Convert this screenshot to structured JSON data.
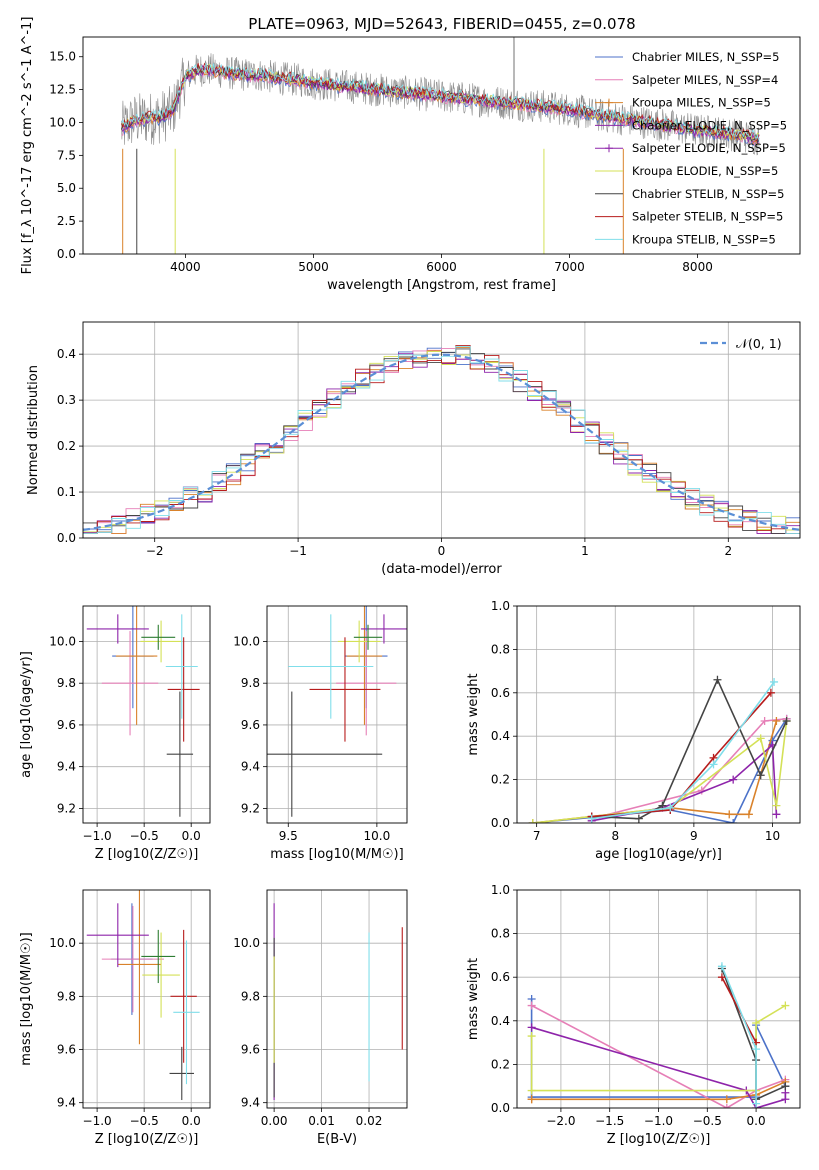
{
  "figure": {
    "title": "PLATE=0963, MJD=52643, FIBERID=0455, z=0.078"
  },
  "colors": {
    "chabrier_miles": "#4c72c9",
    "salpeter_miles": "#e67fb7",
    "kroupa_miles": "#d9822b",
    "chabrier_elodie": "#8e24aa",
    "salpeter_elodie": "#8e24aa",
    "kroupa_elodie": "#d4e157",
    "chabrier_stelib": "#444444",
    "salpeter_stelib": "#b71c1c",
    "kroupa_stelib": "#80deea",
    "data": "#8a8a8a",
    "gauss": "#5b8fd6"
  },
  "chart_data": [
    {
      "id": "spectrum",
      "type": "line",
      "title": "PLATE=0963, MJD=52643, FIBERID=0455, z=0.078",
      "xlabel": "wavelength [Angstrom, rest frame]",
      "ylabel": "Flux [f_λ 10^-17 erg cm^-2 s^-1 A^-1]",
      "xlim": [
        3200,
        8800
      ],
      "ylim": [
        0,
        16.5
      ],
      "xticks": [
        4000,
        5000,
        6000,
        7000,
        8000
      ],
      "yticks": [
        0.0,
        2.5,
        5.0,
        7.5,
        10.0,
        12.5,
        15.0
      ],
      "legend_position": "upper right",
      "legend": [
        {
          "label": "Chabrier MILES, N_SSP=5",
          "color": "#4c72c9",
          "marker": "line"
        },
        {
          "label": "Salpeter MILES, N_SSP=4",
          "color": "#e67fb7",
          "marker": "line"
        },
        {
          "label": "Kroupa MILES, N_SSP=5",
          "color": "#d9822b",
          "marker": "plus"
        },
        {
          "label": "Chabrier ELODIE, N_SSP=5",
          "color": "#8e24aa",
          "marker": "line"
        },
        {
          "label": "Salpeter ELODIE, N_SSP=5",
          "color": "#8e24aa",
          "marker": "plus"
        },
        {
          "label": "Kroupa ELODIE, N_SSP=5",
          "color": "#d4e157",
          "marker": "line"
        },
        {
          "label": "Chabrier STELIB, N_SSP=5",
          "color": "#444444",
          "marker": "line"
        },
        {
          "label": "Salpeter STELIB, N_SSP=5",
          "color": "#b71c1c",
          "marker": "line"
        },
        {
          "label": "Kroupa STELIB, N_SSP=5",
          "color": "#80deea",
          "marker": "line"
        }
      ],
      "continuum": {
        "x": [
          3500,
          3600,
          3700,
          3800,
          3900,
          4000,
          4100,
          4200,
          4300,
          4400,
          4500,
          4600,
          4700,
          4800,
          4900,
          5000,
          5200,
          5400,
          5600,
          5800,
          6000,
          6200,
          6400,
          6600,
          6800,
          7000,
          7200,
          7400,
          7600,
          7800,
          8000,
          8200,
          8400,
          8500
        ],
        "y": [
          9.5,
          10.2,
          10.3,
          10.4,
          10.8,
          13.5,
          14.0,
          14.0,
          13.8,
          13.7,
          13.6,
          13.6,
          13.4,
          13.3,
          13.2,
          13.0,
          12.8,
          12.6,
          12.4,
          12.2,
          12.0,
          11.8,
          11.6,
          11.4,
          11.2,
          11.0,
          10.6,
          10.3,
          10.0,
          9.7,
          9.4,
          9.2,
          8.9,
          8.7
        ]
      }
    },
    {
      "id": "residuals",
      "type": "line",
      "xlabel": "(data-model)/error",
      "ylabel": "Normed distribution",
      "xlim": [
        -2.5,
        2.5
      ],
      "ylim": [
        0,
        0.47
      ],
      "xticks": [
        -2,
        -1,
        0,
        1,
        2
      ],
      "yticks": [
        0.0,
        0.1,
        0.2,
        0.3,
        0.4
      ],
      "grid": true,
      "legend_position": "upper right",
      "legend": [
        {
          "label": "𝒩(0, 1)",
          "color": "#5b8fd6",
          "style": "dashed"
        }
      ],
      "series": [
        {
          "name": "𝒩(0, 1)",
          "mean": 0,
          "sigma": 1
        }
      ]
    },
    {
      "id": "age_vs_Z",
      "type": "errorbar",
      "xlabel": "Z [log10(Z/Z☉)]",
      "ylabel": "age [log10(age/yr)]",
      "xlim": [
        -1.15,
        0.2
      ],
      "ylim": [
        9.13,
        10.17
      ],
      "xticks": [
        -1.0,
        -0.5,
        0.0
      ],
      "yticks": [
        9.2,
        9.4,
        9.6,
        9.8,
        10.0
      ],
      "grid": true,
      "points": [
        {
          "x": -0.62,
          "xe": 0.22,
          "y": 9.93,
          "ye": 0.25,
          "color": "#4c72c9"
        },
        {
          "x": -0.65,
          "xe": 0.3,
          "y": 9.8,
          "ye": 0.25,
          "color": "#e67fb7"
        },
        {
          "x": -0.58,
          "xe": 0.22,
          "y": 9.93,
          "ye": 0.33,
          "color": "#d9822b"
        },
        {
          "x": -0.78,
          "xe": 0.33,
          "y": 10.06,
          "ye": 0.07,
          "color": "#8e24aa"
        },
        {
          "x": -0.32,
          "xe": 0.22,
          "y": 10.0,
          "ye": 0.1,
          "color": "#d4e157"
        },
        {
          "x": -0.35,
          "xe": 0.18,
          "y": 10.02,
          "ye": 0.06,
          "color": "#2e7d32"
        },
        {
          "x": -0.12,
          "xe": 0.14,
          "y": 9.46,
          "ye": 0.3,
          "color": "#444444"
        },
        {
          "x": -0.08,
          "xe": 0.17,
          "y": 9.77,
          "ye": 0.25,
          "color": "#b71c1c"
        },
        {
          "x": -0.1,
          "xe": 0.17,
          "y": 9.88,
          "ye": 0.25,
          "color": "#80deea"
        }
      ]
    },
    {
      "id": "age_vs_mass",
      "type": "errorbar",
      "xlabel": "mass [log10(M/M☉)]",
      "ylabel": "",
      "xlim": [
        9.38,
        10.17
      ],
      "ylim": [
        9.13,
        10.17
      ],
      "xticks": [
        9.5,
        10.0
      ],
      "yticks": [
        9.2,
        9.4,
        9.6,
        9.8,
        10.0
      ],
      "grid": true,
      "points": [
        {
          "x": 9.94,
          "xe": 0.12,
          "y": 9.93,
          "ye": 0.25,
          "color": "#4c72c9"
        },
        {
          "x": 9.94,
          "xe": 0.17,
          "y": 9.8,
          "ye": 0.25,
          "color": "#e67fb7"
        },
        {
          "x": 9.93,
          "xe": 0.1,
          "y": 9.93,
          "ye": 0.33,
          "color": "#d9822b"
        },
        {
          "x": 10.04,
          "xe": 0.13,
          "y": 10.06,
          "ye": 0.07,
          "color": "#8e24aa"
        },
        {
          "x": 9.9,
          "xe": 0.12,
          "y": 10.0,
          "ye": 0.1,
          "color": "#d4e157"
        },
        {
          "x": 9.95,
          "xe": 0.08,
          "y": 10.02,
          "ye": 0.06,
          "color": "#2e7d32"
        },
        {
          "x": 9.52,
          "xe": 0.51,
          "y": 9.46,
          "ye": 0.3,
          "color": "#444444"
        },
        {
          "x": 9.82,
          "xe": 0.2,
          "y": 9.77,
          "ye": 0.25,
          "color": "#b71c1c"
        },
        {
          "x": 9.74,
          "xe": 0.24,
          "y": 9.88,
          "ye": 0.25,
          "color": "#80deea"
        }
      ]
    },
    {
      "id": "mass_weight_vs_age",
      "type": "line",
      "xlabel": "age [log10(age/yr)]",
      "ylabel": "mass weight",
      "xlim": [
        6.75,
        10.35
      ],
      "ylim": [
        0,
        1.0
      ],
      "xticks": [
        7,
        8,
        9,
        10
      ],
      "yticks": [
        0.0,
        0.2,
        0.4,
        0.6,
        0.8,
        1.0
      ],
      "grid": true,
      "series": [
        {
          "name": "Chabrier MILES",
          "color": "#4c72c9",
          "x": [
            6.95,
            8.7,
            9.5,
            10.0,
            10.18
          ],
          "y": [
            0.0,
            0.06,
            0.0,
            0.38,
            0.48
          ]
        },
        {
          "name": "Salpeter MILES",
          "color": "#e67fb7",
          "x": [
            7.7,
            9.1,
            9.9,
            10.18
          ],
          "y": [
            0.02,
            0.15,
            0.47,
            0.48
          ]
        },
        {
          "name": "Kroupa MILES",
          "color": "#d9822b",
          "x": [
            6.95,
            8.7,
            9.45,
            9.7,
            10.05
          ],
          "y": [
            0.0,
            0.07,
            0.04,
            0.04,
            0.47
          ]
        },
        {
          "name": "Chabrier ELODIE",
          "color": "#8e24aa",
          "x": [
            7.7,
            8.6,
            9.5,
            10.0,
            10.05
          ],
          "y": [
            0.01,
            0.07,
            0.2,
            0.36,
            0.04
          ]
        },
        {
          "name": "Kroupa ELODIE",
          "color": "#d4e157",
          "x": [
            6.95,
            8.7,
            9.85,
            10.05,
            10.18
          ],
          "y": [
            0.0,
            0.07,
            0.39,
            0.08,
            0.47
          ]
        },
        {
          "name": "Chabrier STELIB",
          "color": "#444444",
          "x": [
            7.7,
            8.3,
            8.6,
            9.3,
            9.85,
            10.18
          ],
          "y": [
            0.03,
            0.02,
            0.08,
            0.66,
            0.22,
            0.47
          ]
        },
        {
          "name": "Salpeter STELIB",
          "color": "#b71c1c",
          "x": [
            7.7,
            8.7,
            9.25,
            9.98
          ],
          "y": [
            0.03,
            0.06,
            0.3,
            0.6
          ]
        },
        {
          "name": "Kroupa STELIB",
          "color": "#80deea",
          "x": [
            7.7,
            8.7,
            9.25,
            10.02
          ],
          "y": [
            0.02,
            0.07,
            0.27,
            0.65
          ]
        }
      ]
    },
    {
      "id": "mass_vs_Z",
      "type": "errorbar",
      "xlabel": "Z [log10(Z/Z☉)]",
      "ylabel": "mass [log10(M/M☉)]",
      "xlim": [
        -1.15,
        0.2
      ],
      "ylim": [
        9.38,
        10.2
      ],
      "xticks": [
        -1.0,
        -0.5,
        0.0
      ],
      "yticks": [
        9.4,
        9.6,
        9.8,
        10.0
      ],
      "grid": true,
      "points": [
        {
          "x": -0.63,
          "xe": 0.22,
          "y": 9.94,
          "ye": 0.21,
          "color": "#4c72c9"
        },
        {
          "x": -0.62,
          "xe": 0.33,
          "y": 9.94,
          "ye": 0.2,
          "color": "#e67fb7"
        },
        {
          "x": -0.55,
          "xe": 0.23,
          "y": 9.92,
          "ye": 0.3,
          "color": "#d9822b"
        },
        {
          "x": -0.78,
          "xe": 0.33,
          "y": 10.03,
          "ye": 0.12,
          "color": "#8e24aa"
        },
        {
          "x": -0.32,
          "xe": 0.2,
          "y": 9.88,
          "ye": 0.16,
          "color": "#d4e157"
        },
        {
          "x": -0.35,
          "xe": 0.18,
          "y": 9.95,
          "ye": 0.1,
          "color": "#2e7d32"
        },
        {
          "x": -0.1,
          "xe": 0.13,
          "y": 9.51,
          "ye": 0.1,
          "color": "#444444"
        },
        {
          "x": -0.08,
          "xe": 0.14,
          "y": 9.8,
          "ye": 0.25,
          "color": "#b71c1c"
        },
        {
          "x": -0.05,
          "xe": 0.14,
          "y": 9.74,
          "ye": 0.27,
          "color": "#80deea"
        }
      ]
    },
    {
      "id": "mass_vs_ebv",
      "type": "errorbar",
      "xlabel": "E(B-V)",
      "ylabel": "",
      "xlim": [
        -0.0015,
        0.028
      ],
      "ylim": [
        9.38,
        10.2
      ],
      "xticks": [
        0.0,
        0.01,
        0.02
      ],
      "yticks": [
        9.4,
        9.6,
        9.8,
        10.0
      ],
      "grid": true,
      "points": [
        {
          "x": 0.0,
          "y": 9.78,
          "ye": 0.37,
          "color": "#8e24aa"
        },
        {
          "x": 0.0,
          "y": 9.72,
          "ye": 0.3,
          "color": "#444444"
        },
        {
          "x": 0.0,
          "y": 9.75,
          "ye": 0.2,
          "color": "#d4e157"
        },
        {
          "x": 0.02,
          "y": 9.76,
          "ye": 0.28,
          "color": "#80deea"
        },
        {
          "x": 0.027,
          "y": 9.83,
          "ye": 0.23,
          "color": "#b71c1c"
        }
      ]
    },
    {
      "id": "mass_weight_vs_Z",
      "type": "line",
      "xlabel": "Z [log10(Z/Z☉)]",
      "ylabel": "mass weight",
      "xlim": [
        -2.45,
        0.45
      ],
      "ylim": [
        0,
        1.0
      ],
      "xticks": [
        -2.0,
        -1.5,
        -1.0,
        -0.5,
        0.0
      ],
      "yticks": [
        0.0,
        0.2,
        0.4,
        0.6,
        0.8,
        1.0
      ],
      "grid": true,
      "series": [
        {
          "name": "Chabrier MILES",
          "color": "#4c72c9",
          "x": [
            -2.3,
            -2.3,
            0.0,
            0.0,
            0.3
          ],
          "y": [
            0.5,
            0.05,
            0.05,
            0.38,
            0.1
          ]
        },
        {
          "name": "Salpeter MILES",
          "color": "#e67fb7",
          "x": [
            -2.3,
            -0.3,
            0.0,
            0.3
          ],
          "y": [
            0.47,
            0.0,
            0.08,
            0.13
          ]
        },
        {
          "name": "Kroupa MILES",
          "color": "#d9822b",
          "x": [
            -2.3,
            -2.3,
            -0.3,
            0.0,
            0.3
          ],
          "y": [
            0.04,
            0.04,
            0.04,
            0.06,
            0.12
          ]
        },
        {
          "name": "Chabrier ELODIE",
          "color": "#8e24aa",
          "x": [
            -2.3,
            -0.1,
            0.0,
            0.3,
            0.3
          ],
          "y": [
            0.37,
            0.08,
            0.0,
            0.04,
            0.07
          ]
        },
        {
          "name": "Kroupa ELODIE",
          "color": "#d4e157",
          "x": [
            -2.3,
            -2.3,
            0.0,
            0.0,
            0.3
          ],
          "y": [
            0.33,
            0.08,
            0.08,
            0.39,
            0.47
          ]
        },
        {
          "name": "Chabrier STELIB",
          "color": "#444444",
          "x": [
            -0.35,
            0.0,
            0.0,
            0.3
          ],
          "y": [
            0.64,
            0.22,
            0.04,
            0.1
          ]
        },
        {
          "name": "Salpeter STELIB",
          "color": "#b71c1c",
          "x": [
            -0.35,
            0.0
          ],
          "y": [
            0.6,
            0.3
          ]
        },
        {
          "name": "Kroupa STELIB",
          "color": "#80deea",
          "x": [
            -0.35,
            0.0,
            0.0
          ],
          "y": [
            0.65,
            0.27,
            0.02
          ]
        }
      ]
    }
  ]
}
